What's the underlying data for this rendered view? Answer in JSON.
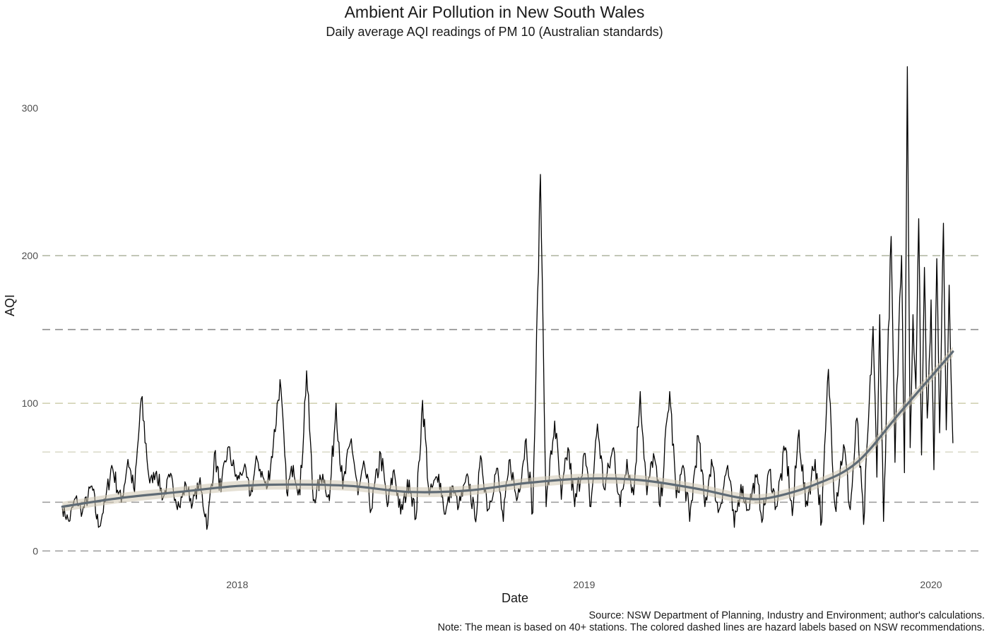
{
  "chart_data": {
    "type": "line",
    "title": "Ambient Air Pollution in New South Wales",
    "subtitle": "Daily average AQI readings of PM 10 (Australian standards)",
    "xlabel": "Date",
    "ylabel": "AQI",
    "x_ticks": [
      "2018",
      "2019",
      "2020"
    ],
    "y_ticks": [
      0,
      100,
      200,
      300
    ],
    "xlim": [
      "2017-06-10",
      "2020-02-25"
    ],
    "ylim": [
      -18,
      332
    ],
    "grid": false,
    "legend": "none",
    "series": [
      {
        "kind": "daily-average",
        "color": "#000000",
        "points": [
          [
            "2017-07-01",
            29
          ],
          [
            "2017-07-08",
            20
          ],
          [
            "2017-07-15",
            36
          ],
          [
            "2017-07-22",
            26
          ],
          [
            "2017-08-01",
            44
          ],
          [
            "2017-08-08",
            16
          ],
          [
            "2017-08-15",
            33
          ],
          [
            "2017-08-22",
            58
          ],
          [
            "2017-09-01",
            33
          ],
          [
            "2017-09-08",
            62
          ],
          [
            "2017-09-15",
            40
          ],
          [
            "2017-09-22",
            103
          ],
          [
            "2017-10-01",
            46
          ],
          [
            "2017-10-08",
            54
          ],
          [
            "2017-10-15",
            36
          ],
          [
            "2017-10-22",
            50
          ],
          [
            "2017-11-01",
            30
          ],
          [
            "2017-11-08",
            45
          ],
          [
            "2017-11-15",
            32
          ],
          [
            "2017-11-22",
            46
          ],
          [
            "2017-12-01",
            18
          ],
          [
            "2017-12-08",
            66
          ],
          [
            "2017-12-15",
            40
          ],
          [
            "2017-12-22",
            70
          ],
          [
            "2018-01-01",
            48
          ],
          [
            "2018-01-08",
            56
          ],
          [
            "2018-01-15",
            38
          ],
          [
            "2018-01-22",
            62
          ],
          [
            "2018-02-01",
            42
          ],
          [
            "2018-02-08",
            72
          ],
          [
            "2018-02-15",
            116
          ],
          [
            "2018-02-22",
            40
          ],
          [
            "2018-03-01",
            58
          ],
          [
            "2018-03-08",
            38
          ],
          [
            "2018-03-15",
            122
          ],
          [
            "2018-03-22",
            34
          ],
          [
            "2018-04-01",
            52
          ],
          [
            "2018-04-08",
            34
          ],
          [
            "2018-04-15",
            100
          ],
          [
            "2018-04-22",
            42
          ],
          [
            "2018-05-01",
            76
          ],
          [
            "2018-05-08",
            38
          ],
          [
            "2018-05-15",
            58
          ],
          [
            "2018-05-22",
            28
          ],
          [
            "2018-06-01",
            66
          ],
          [
            "2018-06-08",
            30
          ],
          [
            "2018-06-15",
            55
          ],
          [
            "2018-06-22",
            25
          ],
          [
            "2018-07-01",
            48
          ],
          [
            "2018-07-08",
            22
          ],
          [
            "2018-07-15",
            102
          ],
          [
            "2018-07-22",
            38
          ],
          [
            "2018-08-01",
            52
          ],
          [
            "2018-08-08",
            25
          ],
          [
            "2018-08-15",
            44
          ],
          [
            "2018-08-22",
            30
          ],
          [
            "2018-09-01",
            50
          ],
          [
            "2018-09-08",
            22
          ],
          [
            "2018-09-15",
            62
          ],
          [
            "2018-09-22",
            28
          ],
          [
            "2018-10-01",
            56
          ],
          [
            "2018-10-08",
            20
          ],
          [
            "2018-10-15",
            62
          ],
          [
            "2018-10-22",
            34
          ],
          [
            "2018-11-01",
            76
          ],
          [
            "2018-11-08",
            26
          ],
          [
            "2018-11-16",
            255
          ],
          [
            "2018-11-22",
            30
          ],
          [
            "2018-12-01",
            88
          ],
          [
            "2018-12-08",
            35
          ],
          [
            "2018-12-15",
            70
          ],
          [
            "2018-12-22",
            30
          ],
          [
            "2019-01-01",
            66
          ],
          [
            "2019-01-08",
            30
          ],
          [
            "2019-01-15",
            86
          ],
          [
            "2019-01-22",
            42
          ],
          [
            "2019-02-01",
            70
          ],
          [
            "2019-02-08",
            30
          ],
          [
            "2019-02-15",
            62
          ],
          [
            "2019-02-22",
            38
          ],
          [
            "2019-03-01",
            108
          ],
          [
            "2019-03-08",
            38
          ],
          [
            "2019-03-15",
            66
          ],
          [
            "2019-03-22",
            30
          ],
          [
            "2019-04-01",
            108
          ],
          [
            "2019-04-08",
            36
          ],
          [
            "2019-04-15",
            58
          ],
          [
            "2019-04-22",
            20
          ],
          [
            "2019-05-01",
            78
          ],
          [
            "2019-05-08",
            30
          ],
          [
            "2019-05-15",
            62
          ],
          [
            "2019-05-22",
            26
          ],
          [
            "2019-06-01",
            58
          ],
          [
            "2019-06-08",
            16
          ],
          [
            "2019-06-15",
            45
          ],
          [
            "2019-06-22",
            28
          ],
          [
            "2019-07-01",
            50
          ],
          [
            "2019-07-08",
            22
          ],
          [
            "2019-07-15",
            55
          ],
          [
            "2019-07-22",
            30
          ],
          [
            "2019-08-01",
            70
          ],
          [
            "2019-08-08",
            24
          ],
          [
            "2019-08-15",
            82
          ],
          [
            "2019-08-22",
            30
          ],
          [
            "2019-09-01",
            62
          ],
          [
            "2019-09-08",
            20
          ],
          [
            "2019-09-15",
            123
          ],
          [
            "2019-09-22",
            30
          ],
          [
            "2019-10-01",
            72
          ],
          [
            "2019-10-08",
            28
          ],
          [
            "2019-10-15",
            90
          ],
          [
            "2019-10-22",
            18
          ],
          [
            "2019-11-01",
            152
          ],
          [
            "2019-11-05",
            50
          ],
          [
            "2019-11-08",
            160
          ],
          [
            "2019-11-12",
            20
          ],
          [
            "2019-11-16",
            120
          ],
          [
            "2019-11-20",
            213
          ],
          [
            "2019-11-24",
            60
          ],
          [
            "2019-11-28",
            150
          ],
          [
            "2019-12-01",
            200
          ],
          [
            "2019-12-04",
            53
          ],
          [
            "2019-12-07",
            328
          ],
          [
            "2019-12-10",
            70
          ],
          [
            "2019-12-13",
            160
          ],
          [
            "2019-12-16",
            110
          ],
          [
            "2019-12-19",
            225
          ],
          [
            "2019-12-22",
            65
          ],
          [
            "2019-12-25",
            192
          ],
          [
            "2019-12-28",
            90
          ],
          [
            "2020-01-01",
            170
          ],
          [
            "2020-01-04",
            55
          ],
          [
            "2020-01-07",
            198
          ],
          [
            "2020-01-10",
            80
          ],
          [
            "2020-01-14",
            222
          ],
          [
            "2020-01-17",
            82
          ],
          [
            "2020-01-20",
            180
          ],
          [
            "2020-01-24",
            73
          ]
        ]
      },
      {
        "kind": "smoothed-mean",
        "color": "#5f6b75",
        "points": [
          [
            "2017-07-01",
            30
          ],
          [
            "2017-09-01",
            36
          ],
          [
            "2017-11-01",
            40
          ],
          [
            "2018-01-01",
            44
          ],
          [
            "2018-03-01",
            45
          ],
          [
            "2018-05-01",
            44
          ],
          [
            "2018-07-01",
            40
          ],
          [
            "2018-09-01",
            41
          ],
          [
            "2018-11-01",
            46
          ],
          [
            "2019-01-01",
            49
          ],
          [
            "2019-03-01",
            48
          ],
          [
            "2019-05-01",
            42
          ],
          [
            "2019-06-15",
            36
          ],
          [
            "2019-07-15",
            36
          ],
          [
            "2019-09-01",
            45
          ],
          [
            "2019-10-15",
            60
          ],
          [
            "2019-12-01",
            95
          ],
          [
            "2020-01-24",
            135
          ]
        ]
      }
    ],
    "hazard_lines": [
      {
        "value": 0,
        "color": "#a3a3a3"
      },
      {
        "value": 33,
        "color": "#a0a0a0"
      },
      {
        "value": 67,
        "color": "#dcdccc"
      },
      {
        "value": 100,
        "color": "#d2d2b4"
      },
      {
        "value": 150,
        "color": "#8d8d8d"
      },
      {
        "value": 200,
        "color": "#b4b9a5"
      }
    ]
  },
  "caption": {
    "source": "Source: NSW Department of Planning, Industry and Environment; author's calculations.",
    "note": "Note: The mean is based on 40+ stations. The colored dashed lines are hazard labels based on NSW recommendations."
  }
}
